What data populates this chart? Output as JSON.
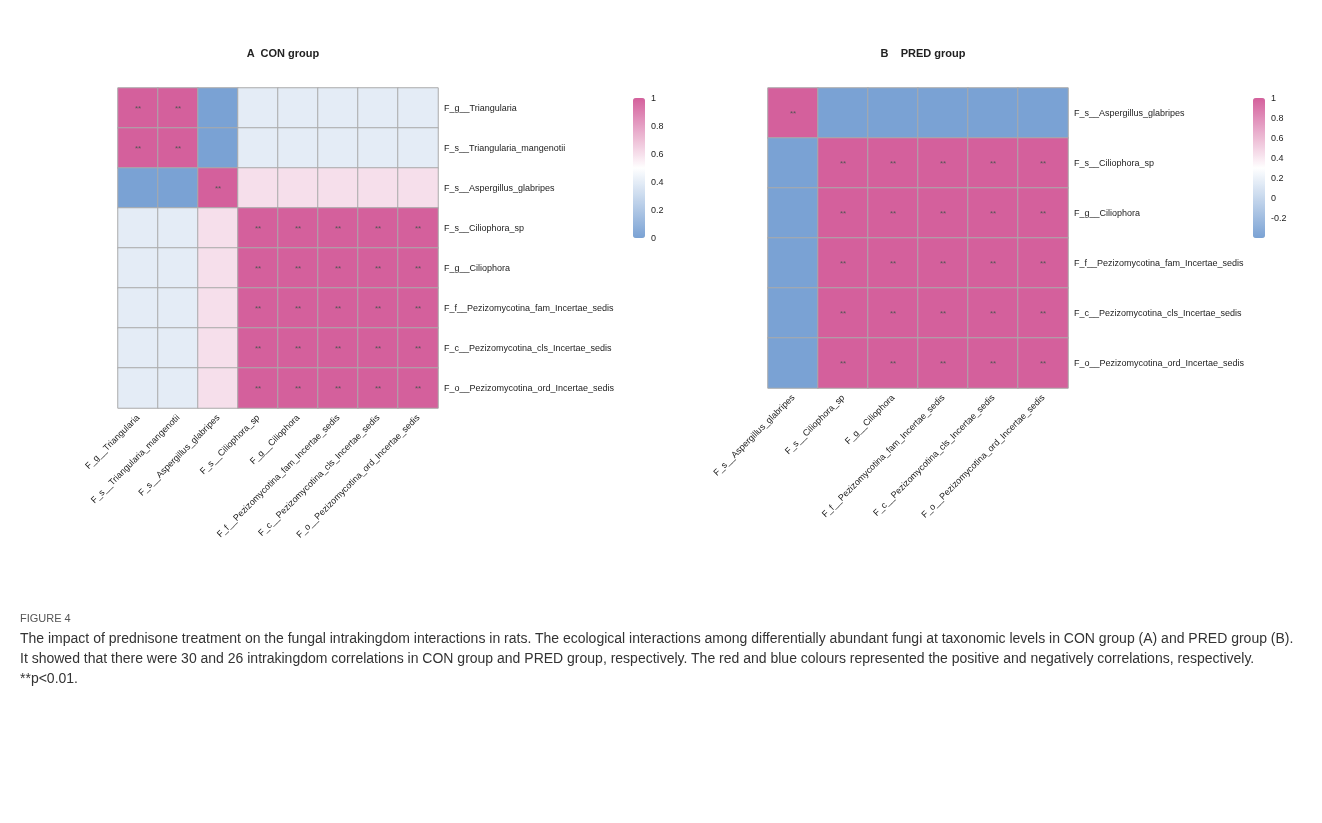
{
  "chart_data": [
    {
      "type": "heatmap",
      "title": "A  CON group",
      "categories": [
        "F_g__Triangularia",
        "F_s__Triangularia_mangenotii",
        "F_s__Aspergillus_glabripes",
        "F_s__Ciliophora_sp",
        "F_g__Ciliophora",
        "F_f__Pezizomycotina_fam_Incertae_sedis",
        "F_c__Pezizomycotina_cls_Incertae_sedis",
        "F_o__Pezizomycotina_ord_Incertae_sedis"
      ],
      "y_categories": [
        "F_g__Triangularia",
        "F_s__Triangularia_mangenotii",
        "F_s__Aspergillus_glabripes",
        "F_s__Ciliophora_sp",
        "F_g__Ciliophora",
        "F_f__Pezizomycotina_fam_Incertae_sedis",
        "F_c__Pezizomycotina_cls_Incertae_sedis",
        "F_o__Pezizomycotina_ord_Incertae_sedis"
      ],
      "cells": [
        [
          1,
          1,
          0,
          0.4,
          0.4,
          0.4,
          0.4,
          0.4
        ],
        [
          1,
          1,
          0,
          0.4,
          0.4,
          0.4,
          0.4,
          0.4
        ],
        [
          0,
          0,
          1,
          0.6,
          0.6,
          0.6,
          0.6,
          0.6
        ],
        [
          0.4,
          0.4,
          0.6,
          1,
          1,
          1,
          1,
          1
        ],
        [
          0.4,
          0.4,
          0.6,
          1,
          1,
          1,
          1,
          1
        ],
        [
          0.4,
          0.4,
          0.6,
          1,
          1,
          1,
          1,
          1
        ],
        [
          0.4,
          0.4,
          0.6,
          1,
          1,
          1,
          1,
          1
        ],
        [
          0.4,
          0.4,
          0.6,
          1,
          1,
          1,
          1,
          1
        ]
      ],
      "cell_labels": [
        [
          "**",
          "**",
          null,
          null,
          null,
          null,
          null,
          null
        ],
        [
          "**",
          "**",
          null,
          null,
          null,
          null,
          null,
          null
        ],
        [
          null,
          null,
          "**",
          null,
          null,
          null,
          null,
          null
        ],
        [
          null,
          null,
          null,
          "**",
          "**",
          "**",
          "**",
          "**"
        ],
        [
          null,
          null,
          null,
          "**",
          "**",
          "**",
          "**",
          "**"
        ],
        [
          null,
          null,
          null,
          "**",
          "**",
          "**",
          "**",
          "**"
        ],
        [
          null,
          null,
          null,
          "**",
          "**",
          "**",
          "**",
          "**"
        ],
        [
          null,
          null,
          null,
          "**",
          "**",
          "**",
          "**",
          "**"
        ]
      ],
      "clim": [
        0,
        1
      ],
      "cticks": [
        0,
        0.2,
        0.4,
        0.6,
        0.8,
        1
      ],
      "annotations": [
        "FIGURE 4",
        "The impact of prednisone treatment on the fungal intrakingdom interactions in rats. The ecological interactions among differentially abundant fungi at taxonomic levels in CON group (A) and PRED group (B). It showed that there were 30 and 26 intrakingdom correlations in CON group and PRED group, respectively. The red and blue colours represented the positive and negatively correlations, respectively. **p<0.01."
      ]
    },
    {
      "type": "heatmap",
      "title": "B    PRED group",
      "categories": [
        "F_s__Aspergillus_glabripes",
        "F_s__Ciliophora_sp",
        "F_g__Ciliophora",
        "F_f__Pezizomycotina_fam_Incertae_sedis",
        "F_c__Pezizomycotina_cls_Incertae_sedis",
        "F_o__Pezizomycotina_ord_Incertae_sedis"
      ],
      "y_categories": [
        "F_s__Aspergillus_glabripes",
        "F_s__Ciliophora_sp",
        "F_g__Ciliophora",
        "F_f__Pezizomycotina_fam_Incertae_sedis",
        "F_c__Pezizomycotina_cls_Incertae_sedis",
        "F_o__Pezizomycotina_ord_Incertae_sedis"
      ],
      "cells": [
        [
          1,
          -0.4,
          -0.4,
          -0.4,
          -0.4,
          -0.4
        ],
        [
          -0.4,
          1,
          1,
          1,
          1,
          1
        ],
        [
          -0.4,
          1,
          1,
          1,
          1,
          1
        ],
        [
          -0.4,
          1,
          1,
          1,
          1,
          1
        ],
        [
          -0.4,
          1,
          1,
          1,
          1,
          1
        ],
        [
          -0.4,
          1,
          1,
          1,
          1,
          1
        ]
      ],
      "cell_labels": [
        [
          "**",
          null,
          null,
          null,
          null,
          null
        ],
        [
          null,
          "**",
          "**",
          "**",
          "**",
          "**"
        ],
        [
          null,
          "**",
          "**",
          "**",
          "**",
          "**"
        ],
        [
          null,
          "**",
          "**",
          "**",
          "**",
          "**"
        ],
        [
          null,
          "**",
          "**",
          "**",
          "**",
          "**"
        ],
        [
          null,
          "**",
          "**",
          "**",
          "**",
          "**"
        ]
      ],
      "clim": [
        -0.4,
        1
      ],
      "cticks": [
        -0.2,
        0,
        0.2,
        0.4,
        0.6,
        0.8,
        1
      ]
    }
  ]
}
